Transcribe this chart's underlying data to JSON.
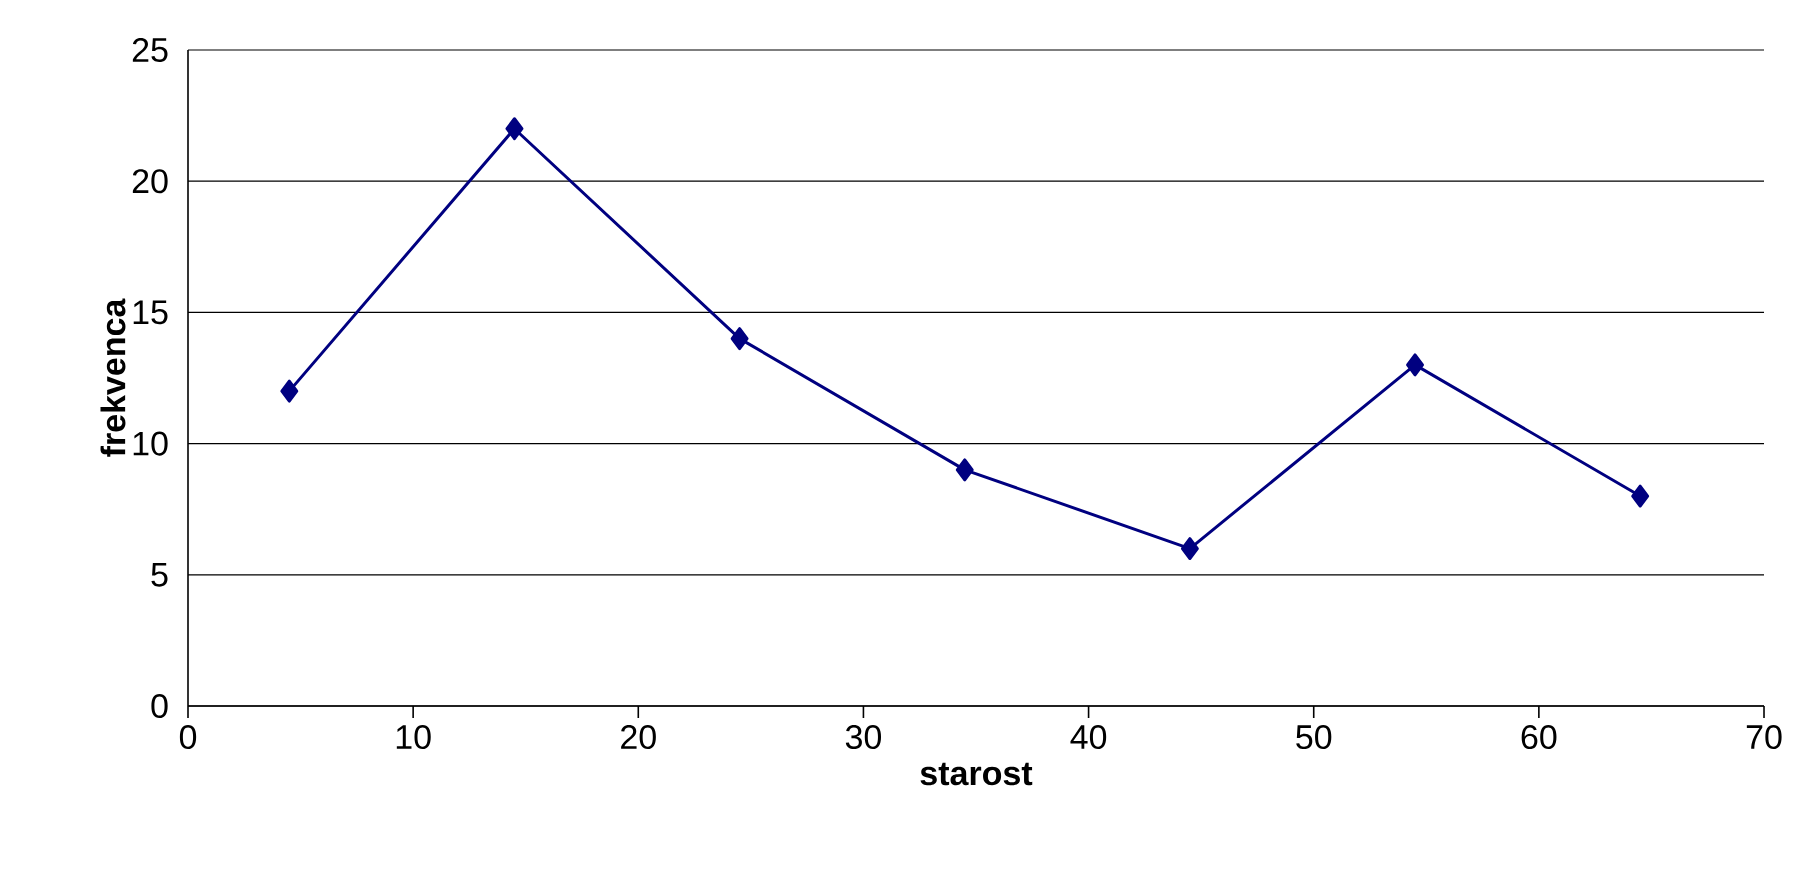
{
  "chart_data": {
    "type": "line",
    "xlabel": "starost",
    "ylabel": "frekvenca",
    "x": [
      4.5,
      14.5,
      24.5,
      34.5,
      44.5,
      54.5,
      64.5
    ],
    "series": [
      {
        "color": "#000080",
        "values": [
          12,
          22,
          14,
          9,
          6,
          13,
          8
        ]
      }
    ],
    "xlim": [
      0,
      70
    ],
    "ylim": [
      0,
      25
    ],
    "xticks": [
      0,
      10,
      20,
      30,
      40,
      50,
      60,
      70
    ],
    "yticks": [
      0,
      5,
      10,
      15,
      20,
      25
    ],
    "grid": "y",
    "marker": "diamond",
    "line_style": "solid"
  }
}
